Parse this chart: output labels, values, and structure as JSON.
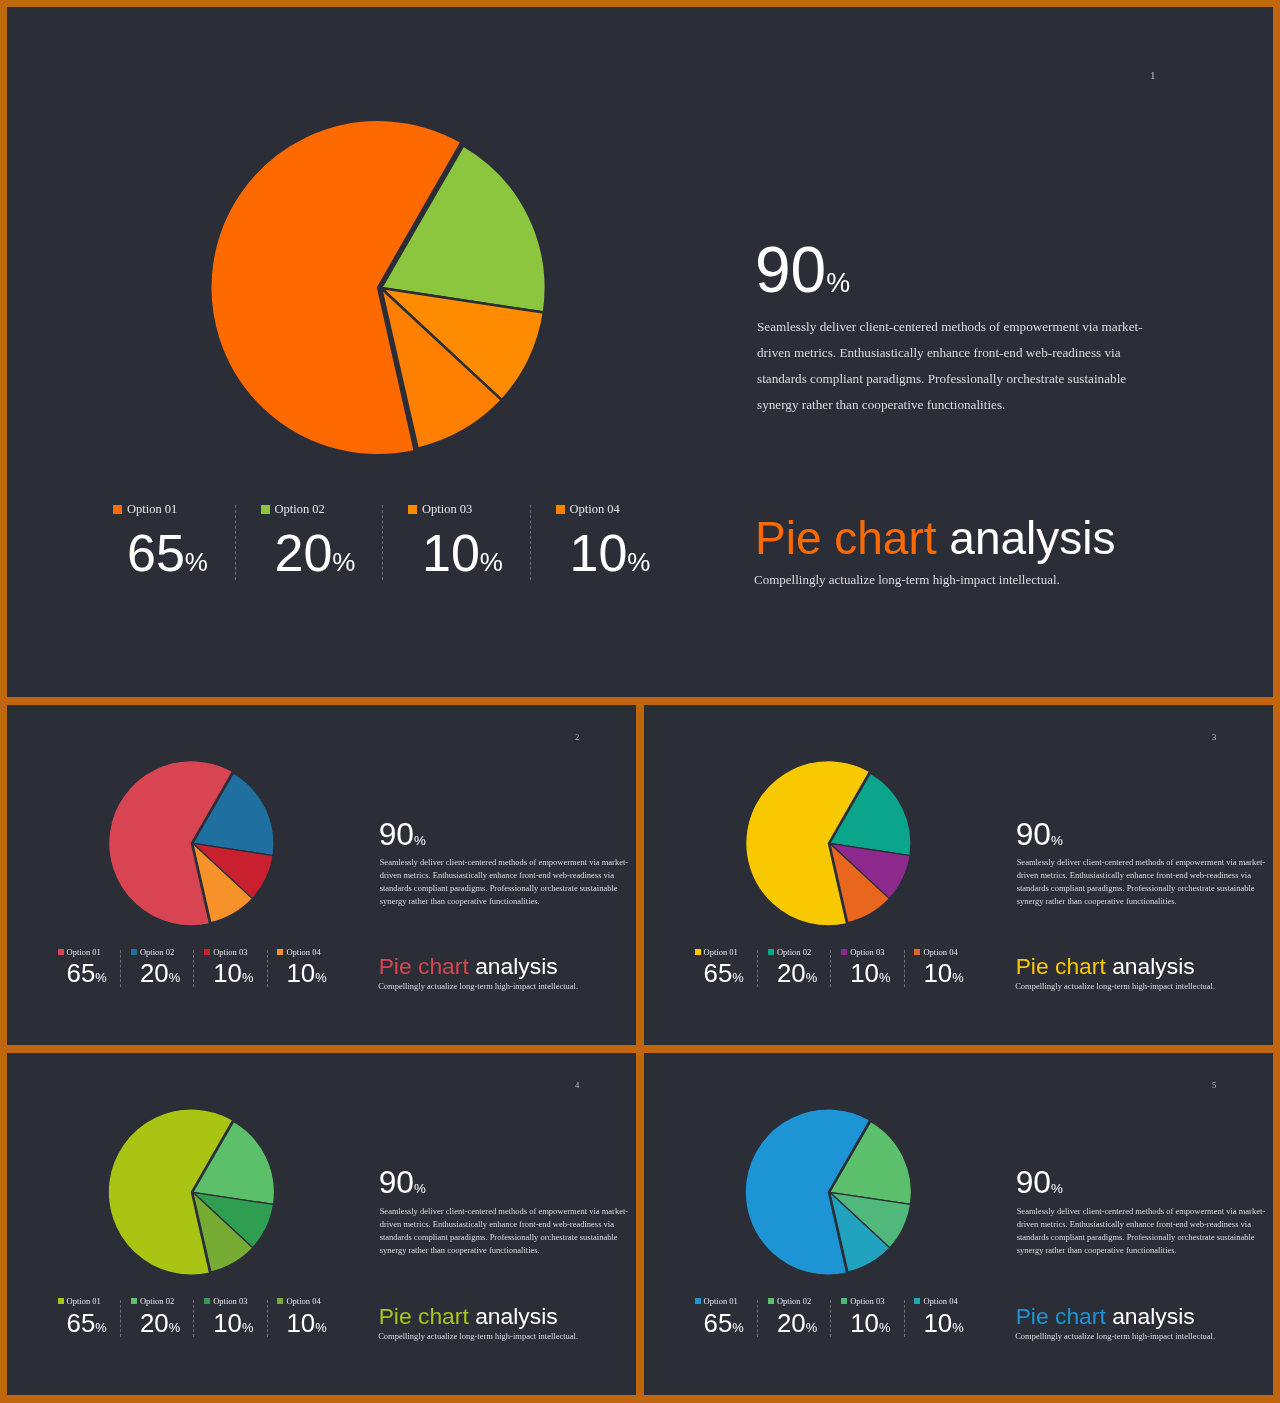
{
  "chart_data": [
    {
      "type": "pie",
      "title": "Pie chart analysis",
      "subtitle": "Compellingly actualize long-term high-impact intellectual.",
      "categories": [
        "Option 01",
        "Option 02",
        "Option 03",
        "Option 04"
      ],
      "values": [
        65,
        20,
        10,
        10
      ],
      "value_labels": [
        "65%",
        "20%",
        "10%",
        "10%"
      ],
      "colors": [
        "#ff6a00",
        "#8cc63f",
        "#ff8c00",
        "#ff7f00"
      ],
      "legend": "bottom",
      "annotations": [
        "1",
        "90%",
        "Seamlessly deliver client-centered methods of empowerment via market-driven metrics. Enthusiastically enhance front-end web-readiness via standards compliant paradigms. Professionally orchestrate sustainable synergy rather than cooperative functionalities."
      ]
    },
    {
      "type": "pie",
      "title": "Pie chart analysis",
      "subtitle": "Compellingly actualize long-term high-impact intellectual.",
      "categories": [
        "Option 01",
        "Option 02",
        "Option 03",
        "Option 04"
      ],
      "values": [
        65,
        20,
        10,
        10
      ],
      "value_labels": [
        "65%",
        "20%",
        "10%",
        "10%"
      ],
      "colors": [
        "#d94452",
        "#1f6fa0",
        "#c8202f",
        "#f7922a"
      ],
      "legend": "bottom",
      "annotations": [
        "2",
        "90%",
        "Seamlessly deliver client-centered methods of empowerment via market-driven metrics. Enthusiastically enhance front-end web-readiness via standards compliant paradigms. Professionally orchestrate sustainable synergy rather than cooperative functionalities."
      ]
    },
    {
      "type": "pie",
      "title": "Pie chart analysis",
      "subtitle": "Compellingly actualize long-term high-impact intellectual.",
      "categories": [
        "Option 01",
        "Option 02",
        "Option 03",
        "Option 04"
      ],
      "values": [
        65,
        20,
        10,
        10
      ],
      "value_labels": [
        "65%",
        "20%",
        "10%",
        "10%"
      ],
      "colors": [
        "#f8c800",
        "#0aa58a",
        "#8e2a8e",
        "#e8661e"
      ],
      "legend": "bottom",
      "annotations": [
        "3",
        "90%",
        "Seamlessly deliver client-centered methods of empowerment via market-driven metrics. Enthusiastically enhance front-end web-readiness via standards compliant paradigms. Professionally orchestrate sustainable synergy rather than cooperative functionalities."
      ]
    },
    {
      "type": "pie",
      "title": "Pie chart analysis",
      "subtitle": "Compellingly actualize long-term high-impact intellectual.",
      "categories": [
        "Option 01",
        "Option 02",
        "Option 03",
        "Option 04"
      ],
      "values": [
        65,
        20,
        10,
        10
      ],
      "value_labels": [
        "65%",
        "20%",
        "10%",
        "10%"
      ],
      "colors": [
        "#aac414",
        "#5cbf6a",
        "#2f9e50",
        "#77ac34"
      ],
      "legend": "bottom",
      "annotations": [
        "4",
        "90%",
        "Seamlessly deliver client-centered methods of empowerment via market-driven metrics. Enthusiastically enhance front-end web-readiness via standards compliant paradigms. Professionally orchestrate sustainable synergy rather than cooperative functionalities."
      ]
    },
    {
      "type": "pie",
      "title": "Pie chart analysis",
      "subtitle": "Compellingly actualize long-term high-impact intellectual.",
      "categories": [
        "Option 01",
        "Option 02",
        "Option 03",
        "Option 04"
      ],
      "values": [
        65,
        20,
        10,
        10
      ],
      "value_labels": [
        "65%",
        "20%",
        "10%",
        "10%"
      ],
      "colors": [
        "#1d95d4",
        "#5bbf6b",
        "#4fb87a",
        "#21a3bf"
      ],
      "legend": "bottom",
      "annotations": [
        "5",
        "90%",
        "Seamlessly deliver client-centered methods of empowerment via market-driven metrics. Enthusiastically enhance front-end web-readiness via standards compliant paradigms. Professionally orchestrate sustainable synergy rather than cooperative functionalities."
      ]
    }
  ]
}
